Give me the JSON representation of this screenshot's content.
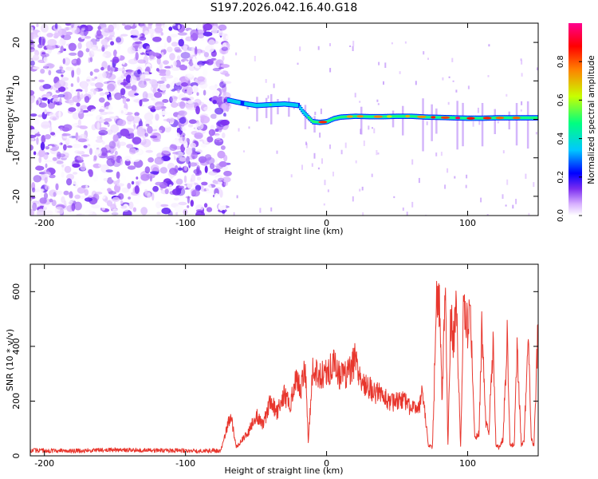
{
  "figure_title": "S197.2026.042.16.40.G18",
  "chart_data": [
    {
      "type": "heatmap",
      "title": "S197.2026.042.16.40.G18",
      "xlabel": "Height of straight line (km)",
      "ylabel": "Frequency (Hz)",
      "xlim": [
        -210,
        150
      ],
      "ylim": [
        -25,
        25
      ],
      "xticks": [
        -200,
        -100,
        0,
        100
      ],
      "yticks": [
        -20,
        -10,
        0,
        10,
        20
      ],
      "colorbar": {
        "label": "Normalized spectral amplitude",
        "range": [
          0,
          1
        ],
        "ticks": [
          0.0,
          0.2,
          0.4,
          0.6,
          0.8
        ],
        "colors": [
          "#ffffff",
          "#d8b0ff",
          "#7a2cf0",
          "#0000ff",
          "#00c8ff",
          "#00ff80",
          "#c8ff00",
          "#ff8000",
          "#ff0000",
          "#ff0090"
        ]
      },
      "noise_region_km": [
        -210,
        -70
      ],
      "ridge": {
        "x": [
          -70,
          -60,
          -50,
          -40,
          -30,
          -20,
          -17,
          -13,
          -10,
          -5,
          0,
          5,
          10,
          20,
          30,
          40,
          50,
          60,
          70,
          80,
          90,
          100,
          110,
          120,
          130,
          140,
          150
        ],
        "freq_hz": [
          5,
          4.2,
          3.6,
          3.8,
          4.0,
          3.6,
          2.0,
          0.5,
          -0.6,
          -0.8,
          -0.6,
          0.2,
          0.6,
          0.8,
          0.7,
          0.7,
          0.8,
          0.8,
          0.6,
          0.5,
          0.4,
          0.3,
          0.3,
          0.4,
          0.4,
          0.4,
          0.4
        ],
        "amplitude": [
          0.35,
          0.3,
          0.35,
          0.45,
          0.4,
          0.3,
          0.35,
          0.45,
          0.55,
          0.75,
          0.7,
          0.55,
          0.6,
          0.7,
          0.65,
          0.6,
          0.65,
          0.65,
          0.7,
          0.8,
          0.85,
          0.85,
          0.85,
          0.8,
          0.7,
          0.6,
          0.5
        ]
      }
    },
    {
      "type": "line",
      "xlabel": "Height of straight line (km)",
      "ylabel": "SNR (10 * v/v)",
      "xlim": [
        -210,
        150
      ],
      "ylim": [
        0,
        700
      ],
      "xticks": [
        -200,
        -100,
        0,
        100
      ],
      "yticks": [
        0,
        200,
        400,
        600
      ],
      "color": "#e8362d",
      "series": [
        {
          "name": "SNR",
          "x": [
            -210,
            -180,
            -150,
            -120,
            -90,
            -75,
            -68,
            -64,
            -60,
            -55,
            -50,
            -45,
            -40,
            -35,
            -30,
            -26,
            -22,
            -18,
            -15,
            -13,
            -10,
            -5,
            0,
            5,
            10,
            15,
            20,
            25,
            30,
            35,
            40,
            45,
            50,
            55,
            60,
            63,
            66,
            68,
            72,
            75,
            78,
            80,
            82,
            84,
            86,
            88,
            90,
            92,
            95,
            97,
            100,
            102,
            105,
            108,
            110,
            113,
            115,
            118,
            120,
            122,
            125,
            128,
            130,
            133,
            135,
            138,
            140,
            143,
            145,
            147,
            150
          ],
          "y": [
            20,
            18,
            22,
            20,
            18,
            20,
            150,
            30,
            60,
            90,
            150,
            110,
            200,
            160,
            230,
            180,
            270,
            250,
            330,
            50,
            310,
            300,
            300,
            330,
            290,
            300,
            350,
            280,
            250,
            230,
            220,
            190,
            200,
            200,
            170,
            190,
            190,
            250,
            40,
            30,
            550,
            560,
            200,
            660,
            40,
            520,
            420,
            560,
            30,
            560,
            480,
            560,
            60,
            80,
            460,
            120,
            80,
            420,
            40,
            30,
            60,
            440,
            40,
            40,
            400,
            40,
            50,
            470,
            60,
            40,
            480
          ]
        }
      ]
    }
  ]
}
